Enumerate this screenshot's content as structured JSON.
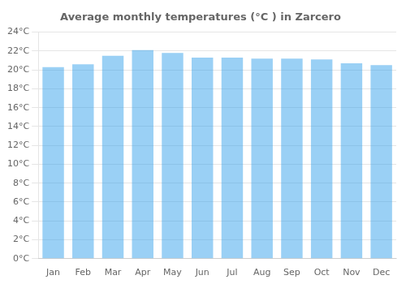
{
  "chart_data": {
    "type": "bar",
    "title": "Average monthly temperatures (°C ) in Zarcero",
    "categories": [
      "Jan",
      "Feb",
      "Mar",
      "Apr",
      "May",
      "Jun",
      "Jul",
      "Aug",
      "Sep",
      "Oct",
      "Nov",
      "Dec"
    ],
    "values": [
      20.3,
      20.6,
      21.5,
      22.1,
      21.8,
      21.3,
      21.3,
      21.2,
      21.2,
      21.1,
      20.7,
      20.5
    ],
    "ylim": [
      0,
      24
    ],
    "yticks": [
      {
        "value": 0,
        "label": "0°C"
      },
      {
        "value": 2,
        "label": "2°C"
      },
      {
        "value": 4,
        "label": "4°C"
      },
      {
        "value": 6,
        "label": "6°C"
      },
      {
        "value": 8,
        "label": "8°C"
      },
      {
        "value": 10,
        "label": "10°C"
      },
      {
        "value": 12,
        "label": "12°C"
      },
      {
        "value": 14,
        "label": "14°C"
      },
      {
        "value": 16,
        "label": "16°C"
      },
      {
        "value": 18,
        "label": "18°C"
      },
      {
        "value": 20,
        "label": "20°C"
      },
      {
        "value": 22,
        "label": "22°C"
      },
      {
        "value": 24,
        "label": "24°C"
      }
    ],
    "grid": true
  }
}
